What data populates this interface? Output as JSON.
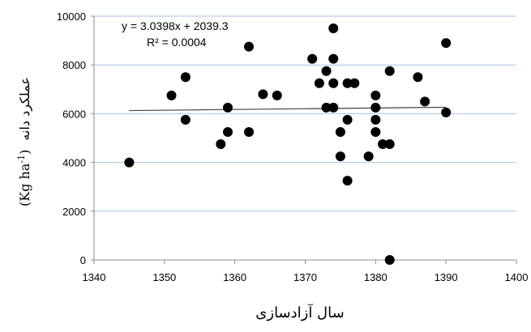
{
  "chart_data": {
    "type": "scatter",
    "xlabel": "سال آزادسازی",
    "ylabel_text": "عملکرد دانه",
    "ylabel_unit_base": "(Kg ha",
    "ylabel_unit_exp": "-1",
    "ylabel_unit_close": ")",
    "xlim": [
      1340,
      1400
    ],
    "ylim": [
      0,
      10000
    ],
    "xticks": [
      "1340",
      "1350",
      "1360",
      "1370",
      "1380",
      "1390",
      "1400"
    ],
    "yticks": [
      "0",
      "2000",
      "4000",
      "6000",
      "8000",
      "10000"
    ],
    "grid": "horizontal",
    "point_color": "#000000",
    "grid_color": "#a9c4e8",
    "axis_color": "#8c8c8c",
    "trendline": {
      "slope": 3.0398,
      "intercept": 2039.3,
      "x_range": [
        1345,
        1390
      ],
      "equation_label": "y = 3.0398x + 2039.3",
      "r2_label": "R² = 0.0004"
    },
    "points": [
      {
        "x": 1345,
        "y": 4000
      },
      {
        "x": 1351,
        "y": 6750
      },
      {
        "x": 1353,
        "y": 7500
      },
      {
        "x": 1353,
        "y": 5750
      },
      {
        "x": 1358,
        "y": 4750
      },
      {
        "x": 1359,
        "y": 6250
      },
      {
        "x": 1359,
        "y": 5250
      },
      {
        "x": 1362,
        "y": 8750
      },
      {
        "x": 1362,
        "y": 5250
      },
      {
        "x": 1364,
        "y": 6800
      },
      {
        "x": 1366,
        "y": 6750
      },
      {
        "x": 1371,
        "y": 8250
      },
      {
        "x": 1372,
        "y": 7250
      },
      {
        "x": 1373,
        "y": 7750
      },
      {
        "x": 1373,
        "y": 6250
      },
      {
        "x": 1374,
        "y": 9500
      },
      {
        "x": 1374,
        "y": 8250
      },
      {
        "x": 1374,
        "y": 7250
      },
      {
        "x": 1374,
        "y": 6250
      },
      {
        "x": 1375,
        "y": 5250
      },
      {
        "x": 1375,
        "y": 4250
      },
      {
        "x": 1376,
        "y": 7250
      },
      {
        "x": 1376,
        "y": 5750
      },
      {
        "x": 1376,
        "y": 3250
      },
      {
        "x": 1377,
        "y": 7250
      },
      {
        "x": 1379,
        "y": 4250
      },
      {
        "x": 1380,
        "y": 6750
      },
      {
        "x": 1380,
        "y": 6250
      },
      {
        "x": 1380,
        "y": 5750
      },
      {
        "x": 1380,
        "y": 5250
      },
      {
        "x": 1381,
        "y": 4750
      },
      {
        "x": 1382,
        "y": 7750
      },
      {
        "x": 1382,
        "y": 4750
      },
      {
        "x": 1382,
        "y": 0
      },
      {
        "x": 1386,
        "y": 7500
      },
      {
        "x": 1387,
        "y": 6500
      },
      {
        "x": 1390,
        "y": 8900
      },
      {
        "x": 1390,
        "y": 6050
      }
    ]
  }
}
